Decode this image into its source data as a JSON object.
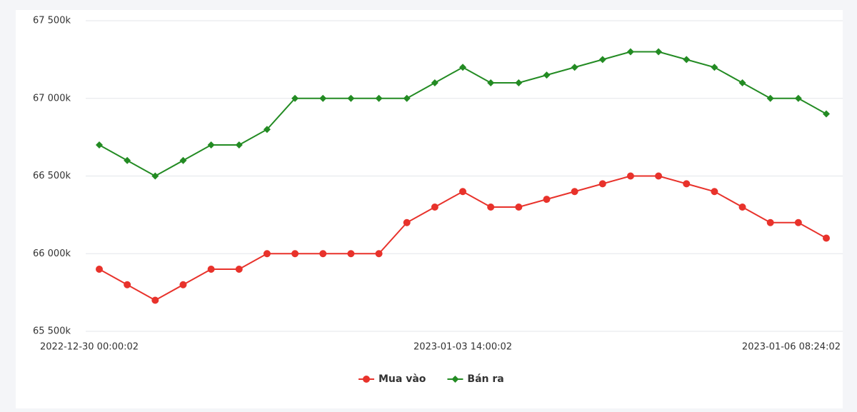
{
  "chart_data": {
    "type": "line",
    "categories": [
      "2022-12-30 00:00:02",
      null,
      null,
      null,
      null,
      null,
      null,
      null,
      null,
      null,
      null,
      null,
      null,
      "2023-01-03 14:00:02",
      null,
      null,
      null,
      null,
      null,
      null,
      null,
      null,
      null,
      null,
      null,
      null,
      "2023-01-06 08:24:02"
    ],
    "series": [
      {
        "name": "Mua vào",
        "color": "#e8322b",
        "marker": "circle",
        "values": [
          65900,
          65800,
          65700,
          65800,
          65900,
          65900,
          66000,
          66000,
          66000,
          66000,
          66000,
          66200,
          66300,
          66400,
          66300,
          66300,
          66350,
          66400,
          66450,
          66500,
          66500,
          66450,
          66400,
          66300,
          66200,
          66200,
          66100
        ]
      },
      {
        "name": "Bán ra",
        "color": "#238b23",
        "marker": "diamond",
        "values": [
          66700,
          66600,
          66500,
          66600,
          66700,
          66700,
          66800,
          67000,
          67000,
          67000,
          67000,
          67000,
          67100,
          67200,
          67100,
          67100,
          67150,
          67200,
          67250,
          67300,
          67300,
          67250,
          67200,
          67100,
          67000,
          67000,
          66900
        ]
      }
    ],
    "ylim": [
      65500,
      67500
    ],
    "yticks": [
      {
        "value": 65500,
        "label": "65 500k"
      },
      {
        "value": 66000,
        "label": "66 000k"
      },
      {
        "value": 66500,
        "label": "66 500k"
      },
      {
        "value": 67000,
        "label": "67 000k"
      },
      {
        "value": 67500,
        "label": "67 500k"
      }
    ],
    "grid": true,
    "legend": "bottom"
  }
}
